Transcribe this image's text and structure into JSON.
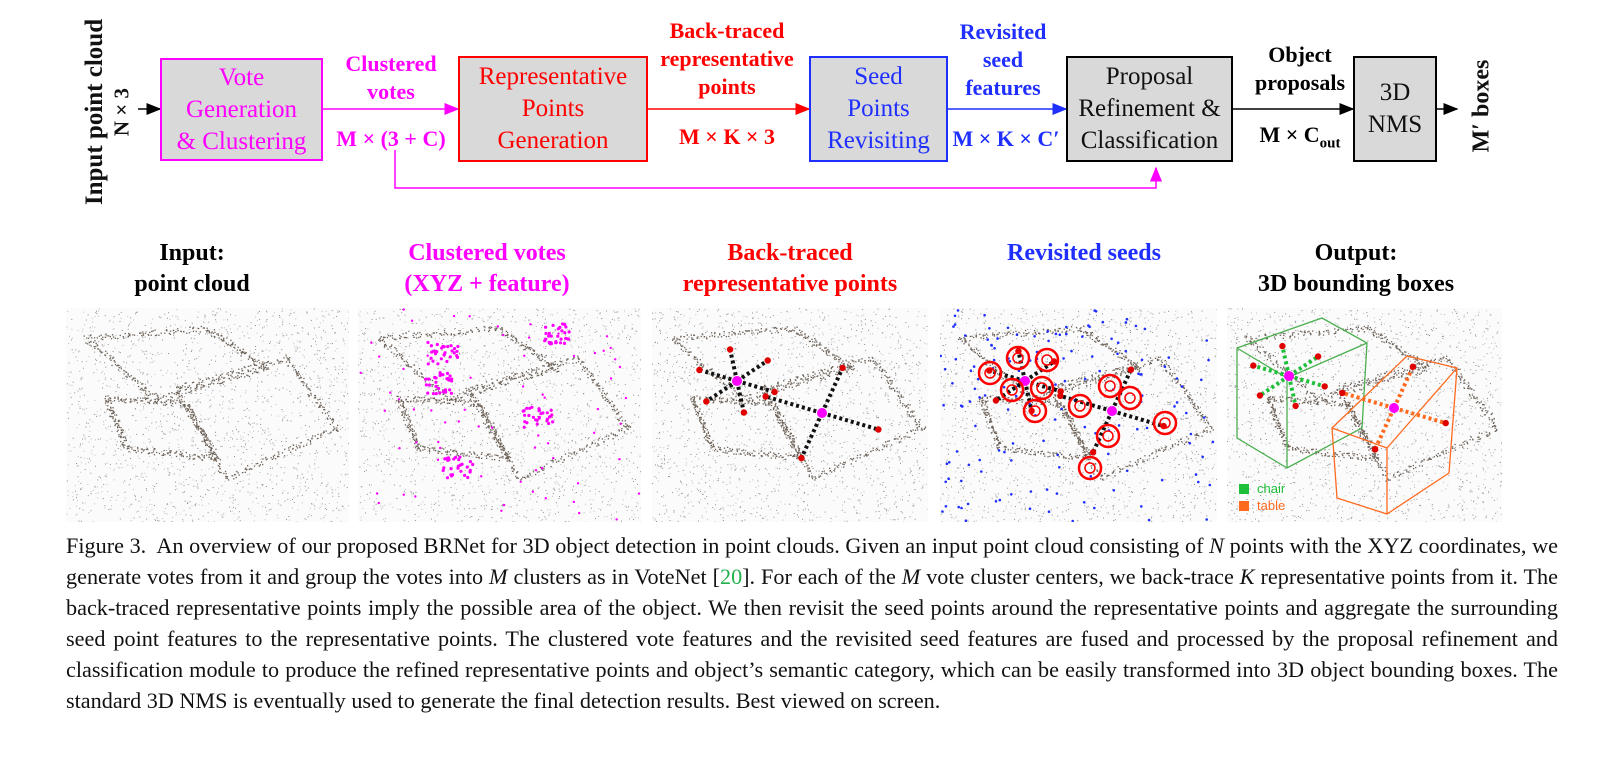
{
  "diagram": {
    "input_label": "Input point cloud",
    "input_dim": "N × 3",
    "output_label": "M′ boxes",
    "boxes": [
      {
        "id": "vote",
        "lines": [
          "Vote",
          "Generation",
          "& Clustering"
        ],
        "color": "#ff00ff"
      },
      {
        "id": "rep",
        "lines": [
          "Representative",
          "Points",
          "Generation"
        ],
        "color": "#ff0000"
      },
      {
        "id": "seed",
        "lines": [
          "Seed",
          "Points",
          "Revisiting"
        ],
        "color": "#1f2fff"
      },
      {
        "id": "prop",
        "lines": [
          "Proposal",
          "Refinement &",
          "Classification"
        ],
        "color": "#000000"
      },
      {
        "id": "nms",
        "lines": [
          "3D",
          "NMS"
        ],
        "color": "#000000"
      }
    ],
    "edges": [
      {
        "lines": [
          "Clustered",
          "votes"
        ],
        "dim": "M × (3 + C)",
        "color": "#ff00ff"
      },
      {
        "lines": [
          "Back-traced",
          "representative",
          "points"
        ],
        "dim": "M × K × 3",
        "color": "#ff0000"
      },
      {
        "lines": [
          "Revisited",
          "seed",
          "features"
        ],
        "dim": "M × K × C′",
        "color": "#1f2fff"
      },
      {
        "lines": [
          "Object",
          "proposals"
        ],
        "dim_main": "M × C",
        "dim_sub": "out",
        "color": "#000000"
      }
    ]
  },
  "panels": [
    {
      "title_lines": [
        "Input:",
        "point cloud"
      ],
      "color": "#000000"
    },
    {
      "title_lines": [
        "Clustered votes",
        "(XYZ + feature)"
      ],
      "color": "#ff00ff"
    },
    {
      "title_lines": [
        "Back-traced",
        "representative points"
      ],
      "color": "#ff0000"
    },
    {
      "title_lines": [
        "Revisited seeds"
      ],
      "color": "#1f2fff"
    },
    {
      "title_lines": [
        "Output:",
        "3D bounding boxes"
      ],
      "color": "#000000"
    }
  ],
  "legend": [
    {
      "label": "chair",
      "color": "#1fbf3a"
    },
    {
      "label": "table",
      "color": "#ff6a1f"
    }
  ],
  "caption": {
    "prefix": "Figure 3.",
    "t1": "An overview of our proposed BRNet for 3D object detection in point clouds. Given an input point cloud consisting of ",
    "v1": "N",
    "t2": " points with the XYZ coordinates, we generate votes from it and group the votes into ",
    "v2": "M",
    "t3": " clusters as in VoteNet [",
    "cite": "20",
    "t4": "]. For each of the ",
    "v3": "M",
    "t5": " vote cluster centers, we back-trace ",
    "v4": "K",
    "t6": " representative points from it. The back-traced representative points imply the possible area of the object. We then revisit the seed points around the representative points and aggregate the surrounding seed point features to the representative points. The clustered vote features and the revisited seed features are fused and processed by the proposal refinement and classification module to produce the refined representative points and object’s semantic category, which can be easily transformed into 3D object bounding boxes. The standard 3D NMS is eventually used to generate the final detection results. Best viewed on screen."
  }
}
